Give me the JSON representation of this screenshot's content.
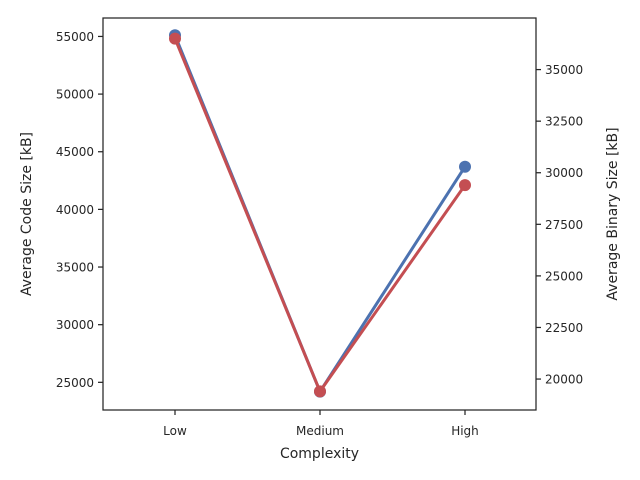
{
  "chart_data": {
    "type": "line",
    "categories": [
      "Low",
      "Medium",
      "High"
    ],
    "xlabel": "Complexity",
    "ylabel_left": "Average Code Size [kB]",
    "ylabel_right": "Average Binary Size [kB]",
    "y_left": {
      "lim": [
        22600,
        56600
      ],
      "ticks": [
        25000,
        30000,
        35000,
        40000,
        45000,
        50000,
        55000
      ]
    },
    "y_right": {
      "lim": [
        18500,
        37500
      ],
      "ticks": [
        20000,
        22500,
        25000,
        27500,
        30000,
        32500,
        35000
      ]
    },
    "series": [
      {
        "axis": "left",
        "color": "#4c72b0",
        "values": [
          55100,
          24200,
          43700
        ]
      },
      {
        "axis": "right",
        "color": "#c44e52",
        "values": [
          36500,
          19400,
          29400
        ]
      }
    ],
    "grid": false,
    "legend": "none"
  }
}
